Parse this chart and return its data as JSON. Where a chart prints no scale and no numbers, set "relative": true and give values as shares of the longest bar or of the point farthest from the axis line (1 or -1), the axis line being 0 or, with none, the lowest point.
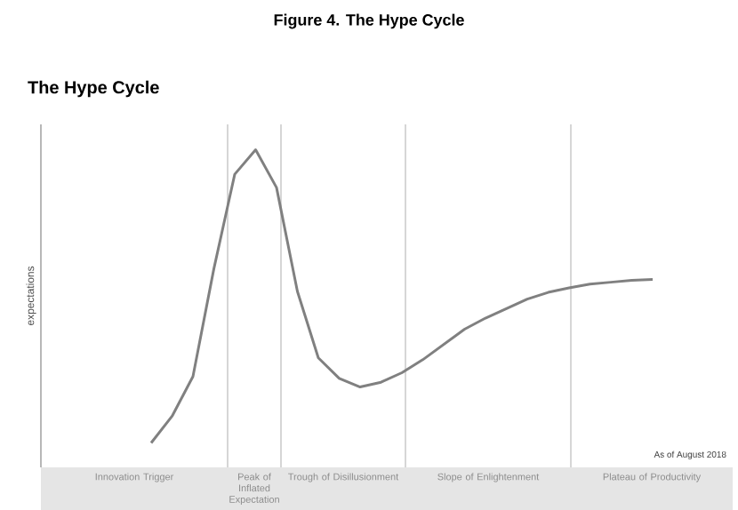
{
  "chart_data": {
    "type": "line",
    "title": "Figure 4. The Hype Cycle",
    "subtitle": "The Hype Cycle",
    "relative": true,
    "color": "#808080",
    "categories": [
      null,
      null,
      null,
      null,
      null,
      null,
      null,
      null,
      null,
      null,
      null,
      null,
      null,
      null,
      null,
      null,
      null,
      null,
      null,
      null,
      null,
      null,
      null,
      null,
      null
    ],
    "values": [
      0.077,
      0.161,
      0.286,
      0.625,
      0.923,
      1.0,
      0.881,
      0.554,
      0.345,
      0.28,
      0.253,
      0.268,
      0.298,
      0.339,
      0.387,
      0.435,
      0.47,
      0.5,
      0.53,
      0.551,
      0.565,
      0.577,
      0.583,
      0.589,
      0.592
    ],
    "annotations": [
      "Innovation Trigger",
      "Peak of Inflated Expectation",
      "Trough of Disillusionment",
      "Slope of Enlightenment",
      "Plateau of Productivity",
      "expectations",
      "As of August 2018"
    ]
  }
}
